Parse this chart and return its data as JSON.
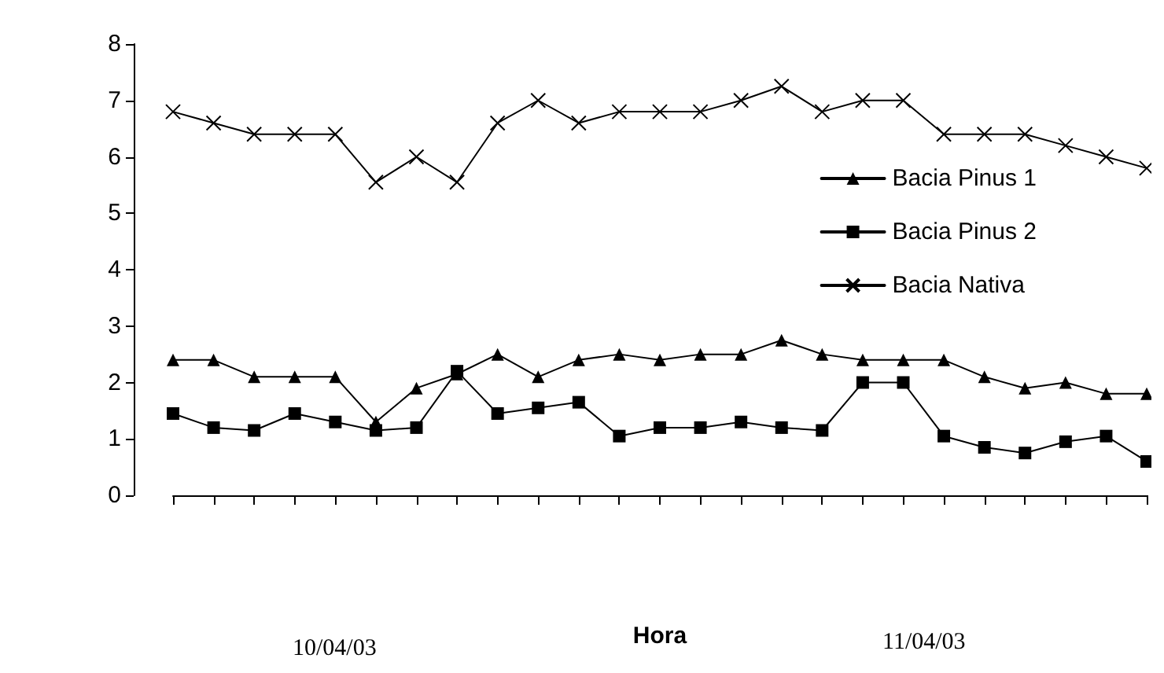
{
  "chart_data": {
    "type": "line",
    "xlabel": "Hora",
    "categories": [
      null,
      null,
      null,
      null,
      null,
      null,
      null,
      null,
      null,
      null,
      null,
      null,
      null,
      null,
      null,
      null,
      null,
      null,
      null,
      null,
      null,
      null,
      null,
      null,
      null
    ],
    "series": [
      {
        "name": "Bacia Pinus 1",
        "color": "#000000",
        "marker": "triangle",
        "values": [
          2.4,
          2.4,
          2.1,
          2.1,
          2.1,
          1.3,
          1.9,
          2.15,
          2.5,
          2.1,
          2.4,
          2.5,
          2.4,
          2.5,
          2.5,
          2.75,
          2.5,
          2.4,
          2.4,
          2.4,
          2.1,
          1.9,
          2.0,
          1.8,
          1.8
        ]
      },
      {
        "name": "Bacia Pinus 2",
        "color": "#000000",
        "marker": "square",
        "values": [
          1.45,
          1.2,
          1.15,
          1.45,
          1.3,
          1.15,
          1.2,
          2.2,
          1.45,
          1.55,
          1.65,
          1.05,
          1.2,
          1.2,
          1.3,
          1.2,
          1.15,
          2.0,
          2.0,
          1.05,
          0.85,
          0.75,
          0.95,
          1.05,
          0.6
        ]
      },
      {
        "name": "Bacia Nativa",
        "color": "#000000",
        "marker": "cross",
        "values": [
          6.8,
          6.6,
          6.4,
          6.4,
          6.4,
          5.55,
          6.0,
          5.55,
          6.6,
          7.0,
          6.6,
          6.8,
          6.8,
          6.8,
          7.0,
          7.25,
          6.8,
          7.0,
          7.0,
          6.4,
          6.4,
          6.4,
          6.2,
          6.0,
          5.8
        ]
      }
    ],
    "ylim": [
      0,
      8
    ],
    "yticks": [
      0,
      1,
      2,
      3,
      4,
      5,
      6,
      7,
      8
    ],
    "grid": false,
    "legend": "right",
    "line_style": "solid",
    "annotations": [
      "10/04/03",
      "11/04/03"
    ]
  }
}
